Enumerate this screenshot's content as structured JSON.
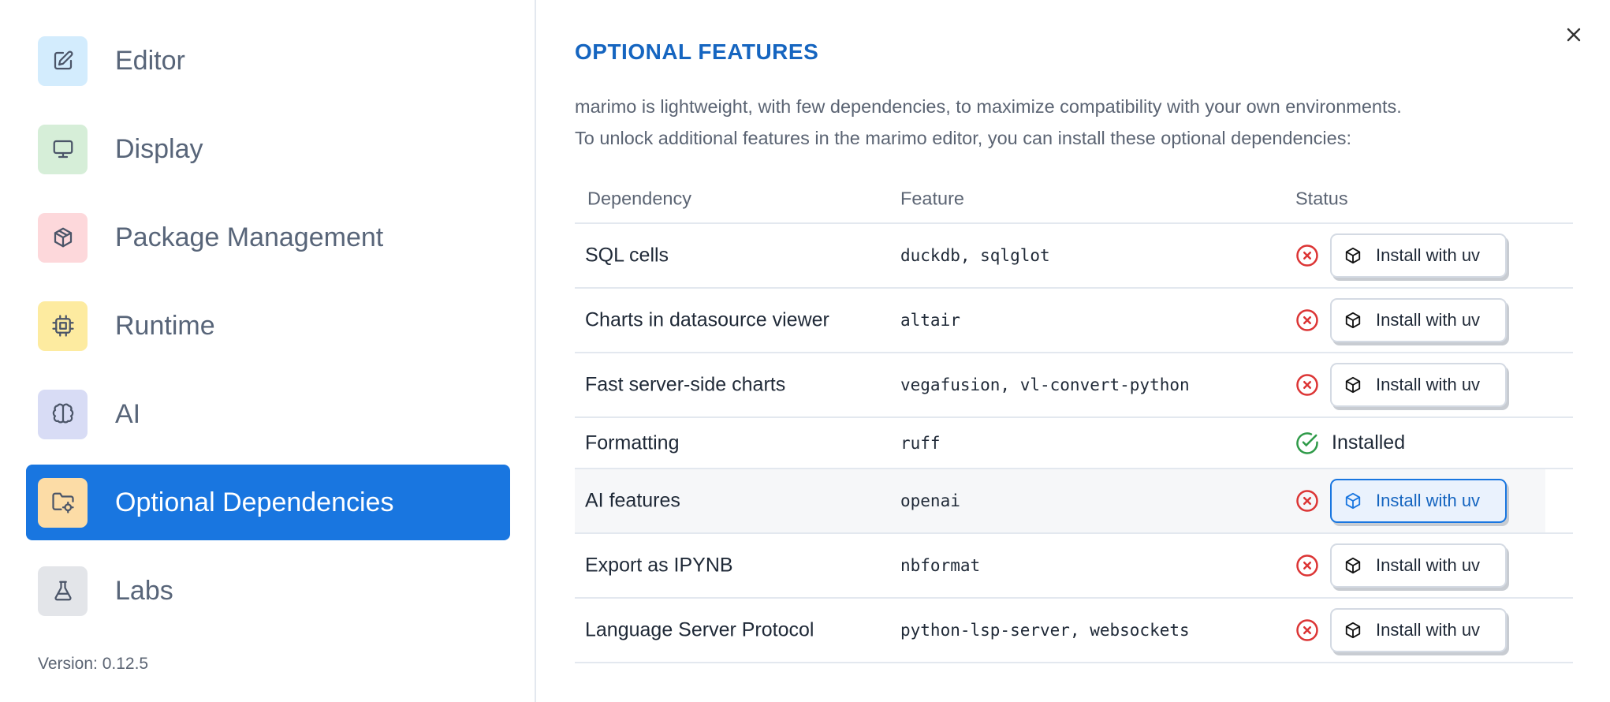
{
  "sidebar": {
    "items": [
      {
        "label": "Editor",
        "icon": "pencil-square-icon",
        "bg": "#d3ecfd"
      },
      {
        "label": "Display",
        "icon": "monitor-icon",
        "bg": "#d6eed8"
      },
      {
        "label": "Package Management",
        "icon": "package-icon",
        "bg": "#fdd8db"
      },
      {
        "label": "Runtime",
        "icon": "cpu-icon",
        "bg": "#fdeba0"
      },
      {
        "label": "AI",
        "icon": "brain-icon",
        "bg": "#d8dcf5"
      },
      {
        "label": "Optional Dependencies",
        "icon": "folder-cog-icon",
        "bg": "#fcdca6",
        "active": true
      },
      {
        "label": "Labs",
        "icon": "flask-icon",
        "bg": "#e3e5e9"
      }
    ],
    "version": "Version: 0.12.5"
  },
  "main": {
    "title": "OPTIONAL FEATURES",
    "description": [
      "marimo is lightweight, with few dependencies, to maximize compatibility with your own environments.",
      "To unlock additional features in the marimo editor, you can install these optional dependencies:"
    ],
    "columns": [
      "Dependency",
      "Feature",
      "Status"
    ],
    "rows": [
      {
        "dependency": "SQL cells",
        "feature": "duckdb, sqlglot",
        "status": "missing",
        "action": "Install with uv"
      },
      {
        "dependency": "Charts in datasource viewer",
        "feature": "altair",
        "status": "missing",
        "action": "Install with uv"
      },
      {
        "dependency": "Fast server-side charts",
        "feature": "vegafusion, vl-convert-python",
        "status": "missing",
        "action": "Install with uv"
      },
      {
        "dependency": "Formatting",
        "feature": "ruff",
        "status": "installed",
        "status_label": "Installed"
      },
      {
        "dependency": "AI features",
        "feature": "openai",
        "status": "missing",
        "action": "Install with uv",
        "hovered": true
      },
      {
        "dependency": "Export as IPYNB",
        "feature": "nbformat",
        "status": "missing",
        "action": "Install with uv"
      },
      {
        "dependency": "Language Server Protocol",
        "feature": "python-lsp-server, websockets",
        "status": "missing",
        "action": "Install with uv"
      }
    ]
  },
  "colors": {
    "accent": "#1976e0",
    "title": "#1565c0",
    "error": "#dc3535",
    "success": "#2e9a48"
  }
}
